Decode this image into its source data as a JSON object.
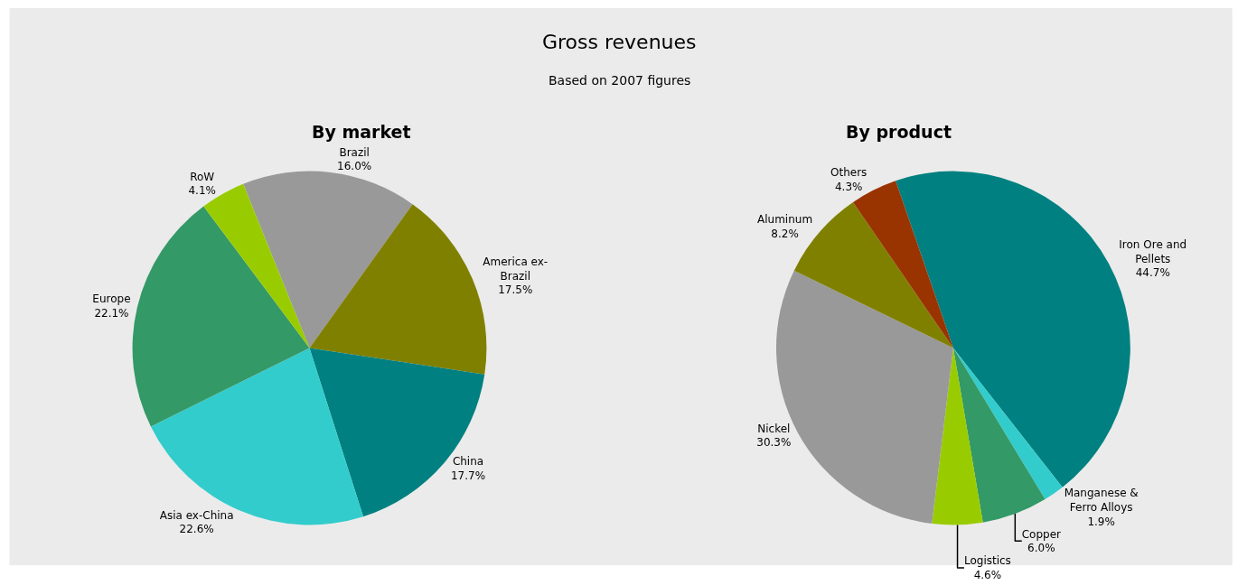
{
  "chart_data": [
    {
      "type": "pie",
      "title": "By market",
      "annotations": [
        "Gross revenues",
        "Based on 2007 figures"
      ],
      "legend": false,
      "categories": [
        "Brazil",
        "America ex-Brazil",
        "China",
        "Asia ex-China",
        "Europe",
        "RoW"
      ],
      "values": [
        16.0,
        17.5,
        17.7,
        22.6,
        22.1,
        4.1
      ],
      "value_labels": [
        "16.0%",
        "17.5%",
        "17.7%",
        "22.6%",
        "22.1%",
        "4.1%"
      ],
      "colors": [
        "#999999",
        "#808000",
        "#008080",
        "#33cccc",
        "#339966",
        "#99cc00"
      ]
    },
    {
      "type": "pie",
      "title": "By product",
      "legend": false,
      "categories": [
        "Iron Ore and Pellets",
        "Manganese & Ferro Alloys",
        "Copper",
        "Logistics",
        "Nickel",
        "Aluminum",
        "Others"
      ],
      "values": [
        44.7,
        1.9,
        6.0,
        4.6,
        30.3,
        8.2,
        4.3
      ],
      "value_labels": [
        "44.7%",
        "1.9%",
        "6.0%",
        "4.6%",
        "30.3%",
        "8.2%",
        "4.3%"
      ],
      "colors": [
        "#008080",
        "#33cccc",
        "#339966",
        "#99cc00",
        "#999999",
        "#808000",
        "#993300"
      ]
    }
  ]
}
